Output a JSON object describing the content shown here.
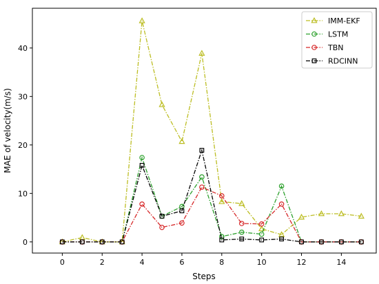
{
  "chart_data": {
    "type": "line",
    "xlabel": "Steps",
    "ylabel": "MAE of velocity(m/s)",
    "xlim": [
      -1.5,
      15.75
    ],
    "ylim": [
      -2.3,
      48.2
    ],
    "xticks": [
      0,
      2,
      4,
      6,
      8,
      10,
      12,
      14
    ],
    "yticks": [
      0,
      10,
      20,
      30,
      40
    ],
    "grid": false,
    "legend": "top-right",
    "x": [
      0,
      1,
      2,
      3,
      4,
      5,
      6,
      7,
      8,
      9,
      10,
      11,
      12,
      13,
      14,
      15
    ],
    "series": [
      {
        "name": "IMM-EKF",
        "color": "#bcbd22",
        "marker": "triangle",
        "values": [
          0,
          0.9,
          0,
          0,
          45.6,
          28.3,
          20.7,
          38.9,
          8.3,
          7.9,
          2.7,
          1.5,
          5.1,
          5.8,
          5.8,
          5.3
        ]
      },
      {
        "name": "LSTM",
        "color": "#2ca02c",
        "marker": "circle",
        "values": [
          0,
          0,
          0,
          0,
          17.4,
          5.3,
          7.3,
          13.4,
          1.1,
          2.0,
          1.6,
          11.5,
          0,
          0,
          0,
          0
        ]
      },
      {
        "name": "TBN",
        "color": "#d62728",
        "marker": "circle",
        "values": [
          0,
          0,
          0,
          0,
          7.8,
          3.0,
          3.9,
          11.3,
          9.5,
          3.8,
          3.7,
          7.8,
          0,
          0,
          0,
          0
        ]
      },
      {
        "name": "RDCINN",
        "color": "#000000",
        "marker": "square",
        "values": [
          0,
          0,
          0,
          0,
          15.8,
          5.3,
          6.4,
          18.9,
          0.4,
          0.6,
          0.4,
          0.6,
          0,
          0,
          0,
          0
        ]
      }
    ]
  }
}
